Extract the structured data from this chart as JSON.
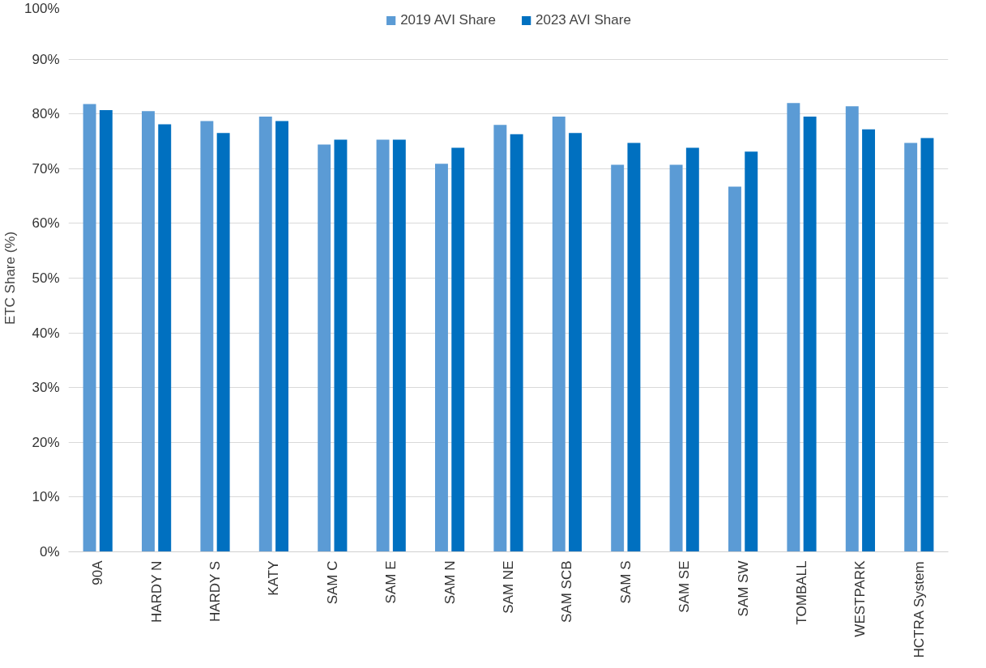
{
  "chart_data": {
    "type": "bar",
    "ylabel": "ETC Share (%)",
    "categories": [
      "90A",
      "HARDY N",
      "HARDY S",
      "KATY",
      "SAM C",
      "SAM E",
      "SAM N",
      "SAM NE",
      "SAM SCB",
      "SAM S",
      "SAM SE",
      "SAM SW",
      "TOMBALL",
      "WESTPARK",
      "HCTRA System"
    ],
    "series": [
      {
        "name": "2019 AVI Share",
        "color": "#5b9bd5",
        "values": [
          81.8,
          80.5,
          78.7,
          79.5,
          74.4,
          75.3,
          70.9,
          78.0,
          79.5,
          70.7,
          70.7,
          66.7,
          82.0,
          81.4,
          74.7
        ]
      },
      {
        "name": "2023 AVI Share",
        "color": "#0070c0",
        "values": [
          80.7,
          78.1,
          76.5,
          78.7,
          75.3,
          75.3,
          73.8,
          76.3,
          76.5,
          74.7,
          73.8,
          73.1,
          79.5,
          77.2,
          75.6
        ]
      }
    ],
    "ylim": [
      0,
      100
    ],
    "yticks": [
      {
        "value": 0,
        "label": "0%"
      },
      {
        "value": 10,
        "label": "10%"
      },
      {
        "value": 20,
        "label": "20%"
      },
      {
        "value": 30,
        "label": "30%"
      },
      {
        "value": 40,
        "label": "40%"
      },
      {
        "value": 50,
        "label": "50%"
      },
      {
        "value": 60,
        "label": "60%"
      },
      {
        "value": 70,
        "label": "70%"
      },
      {
        "value": 80,
        "label": "80%"
      },
      {
        "value": 90,
        "label": "90%"
      },
      {
        "value": 100,
        "label": "100%"
      }
    ],
    "grid": "y",
    "legend": "top"
  }
}
